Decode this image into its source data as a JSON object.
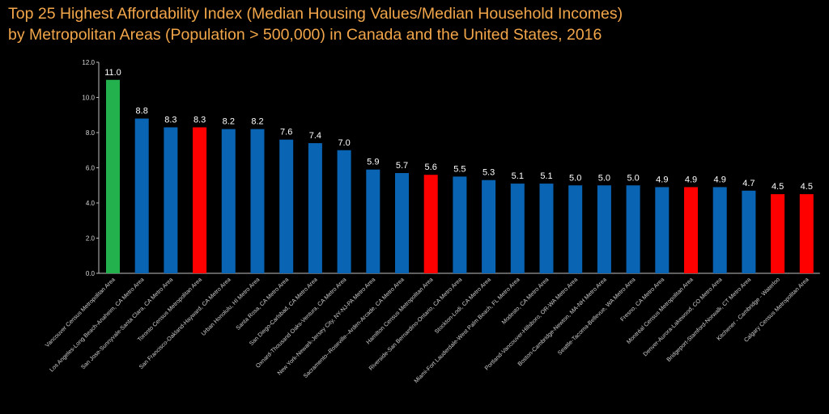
{
  "chart_data": {
    "type": "bar",
    "title": [
      "Top 25 Highest Affordability Index (Median Housing Values/Median Household Incomes)",
      "by Metropolitan Areas (Population > 500,000) in Canada and the United States, 2016"
    ],
    "xlabel": "",
    "ylabel": "",
    "ylim": [
      0,
      12
    ],
    "yticks": [
      "0.0",
      "2.0",
      "4.0",
      "6.0",
      "8.0",
      "10.0",
      "12.0"
    ],
    "ytick_values": [
      0,
      2,
      4,
      6,
      8,
      10,
      12
    ],
    "grid": false,
    "categories": [
      "Vancouver Census Metropolitan Area",
      "Los Angeles-Long Beach-Anaheim, CA Metro Area",
      "San Jose-Sunnyvale-Santa Clara, CA Metro Area",
      "Toronto Census Metropolitan Area",
      "San Francisco-Oakland-Hayward, CA Metro Area",
      "Urban Honolulu, HI Metro Area",
      "Santa Rosa, CA Metro Area",
      "San Diego-Carlsbad, CA Metro Area",
      "Oxnard-Thousand Oaks-Ventura, CA Metro Area",
      "New York-Newark-Jersey City, NY-NJ-PA Metro Area",
      "Sacramento--Roseville--Arden-Arcade, CA Metro Area",
      "Hamilton Census Metropolitan Area",
      "Riverside-San Bernardino-Ontario, CA Metro Area",
      "Stockton-Lodi, CA Metro Area",
      "Miami-Fort Lauderdale-West Palm Beach, FL Metro Area",
      "Modesto, CA Metro Area",
      "Portland-Vancouver-Hillsboro, OR-WA Metro Area",
      "Boston-Cambridge-Newton, MA-NH Metro Area",
      "Seattle-Tacoma-Bellevue, WA Metro Area",
      "Fresno, CA Metro Area",
      "Montréal Census Metropolitan Area",
      "Denver-Aurora-Lakewood, CO Metro Area",
      "Bridgeport-Stamford-Norwalk, CT Metro Area",
      "Kitchener - Cambridge - Waterloo",
      "Calgary Census Metropolitan Area"
    ],
    "values": [
      11.0,
      8.8,
      8.3,
      8.3,
      8.2,
      8.2,
      7.6,
      7.4,
      7.0,
      5.9,
      5.7,
      5.6,
      5.5,
      5.3,
      5.1,
      5.1,
      5.0,
      5.0,
      5.0,
      4.9,
      4.9,
      4.9,
      4.7,
      4.5,
      4.5
    ],
    "value_labels": [
      "11.0",
      "8.8",
      "8.3",
      "8.3",
      "8.2",
      "8.2",
      "7.6",
      "7.4",
      "7.0",
      "5.9",
      "5.7",
      "5.6",
      "5.5",
      "5.3",
      "5.1",
      "5.1",
      "5.0",
      "5.0",
      "5.0",
      "4.9",
      "4.9",
      "4.9",
      "4.7",
      "4.5",
      "4.5"
    ],
    "bar_colors": [
      "#22b14c",
      "#0a64b4",
      "#0a64b4",
      "#ff0000",
      "#0a64b4",
      "#0a64b4",
      "#0a64b4",
      "#0a64b4",
      "#0a64b4",
      "#0a64b4",
      "#0a64b4",
      "#ff0000",
      "#0a64b4",
      "#0a64b4",
      "#0a64b4",
      "#0a64b4",
      "#0a64b4",
      "#0a64b4",
      "#0a64b4",
      "#0a64b4",
      "#ff0000",
      "#0a64b4",
      "#0a64b4",
      "#ff0000",
      "#ff0000"
    ],
    "colors": {
      "title": "#f2a64a",
      "axis": "#bfbfbf",
      "background": "#000000"
    }
  }
}
